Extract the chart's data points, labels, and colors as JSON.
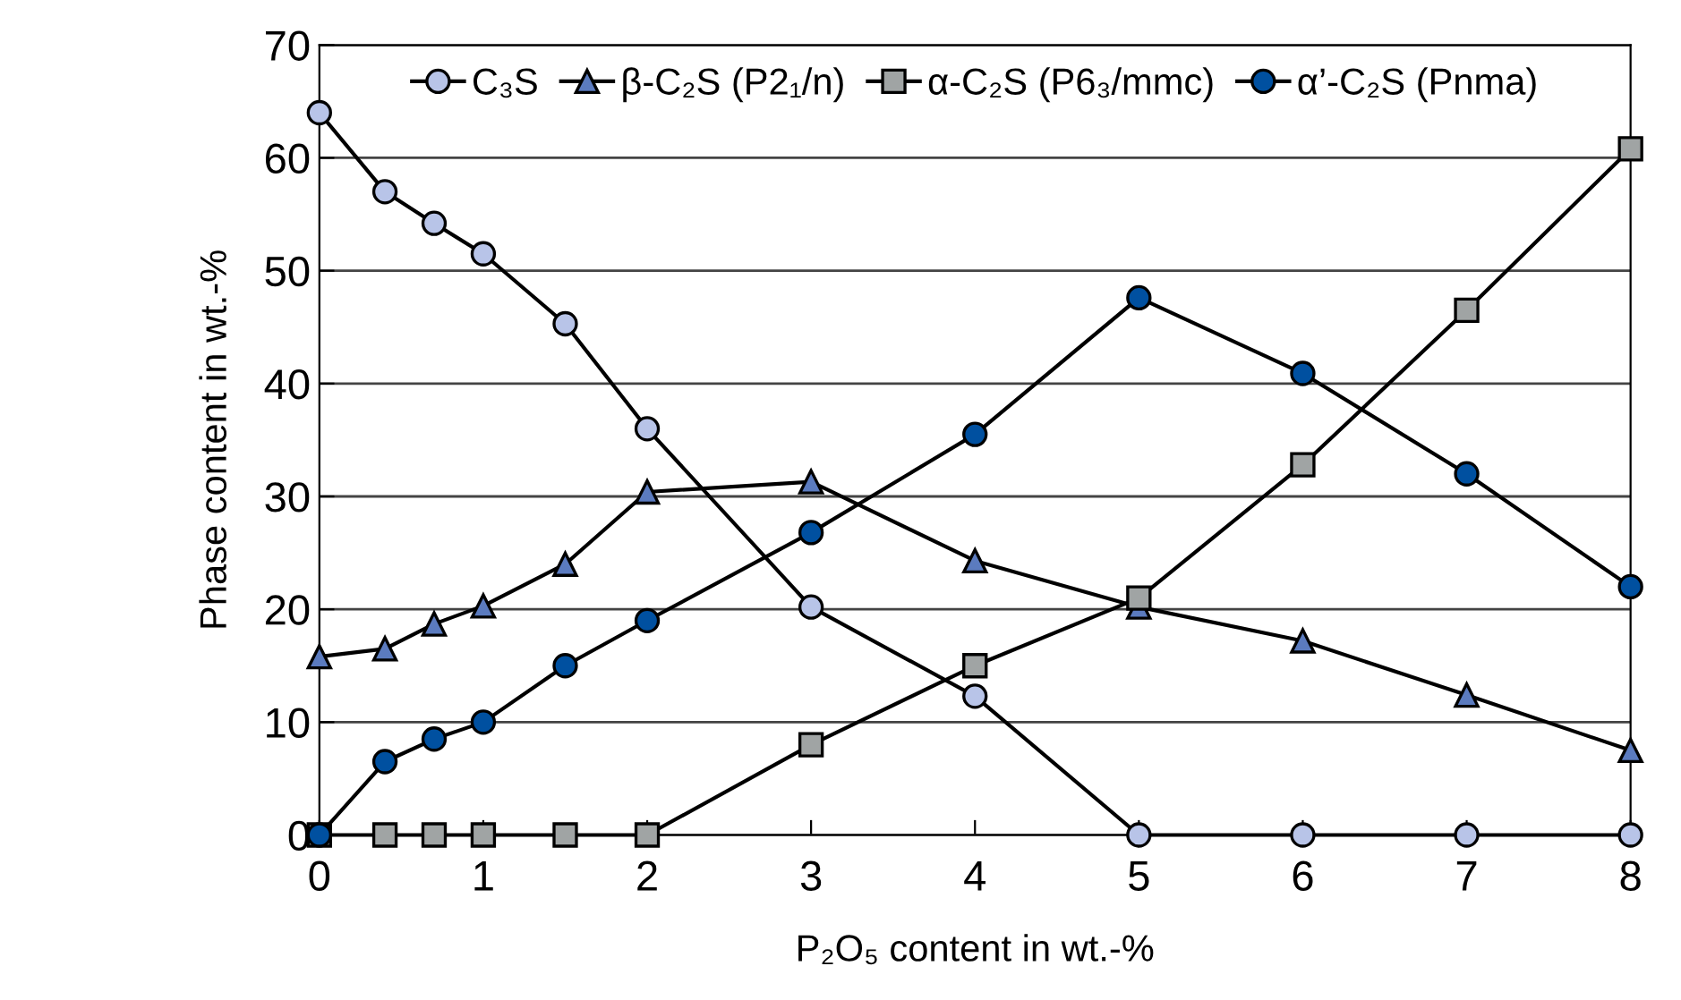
{
  "chart_data": {
    "type": "line",
    "xlabel": "P₂O₅ content in wt.-%",
    "ylabel": "Phase content in wt.-%",
    "x": [
      0,
      0.4,
      0.7,
      1,
      1.5,
      2,
      3,
      4,
      5,
      6,
      7,
      8
    ],
    "series": [
      {
        "name": "C₃S",
        "color": "#b8c4e8",
        "marker": "circle",
        "values": [
          64,
          57,
          54.2,
          51.5,
          45.3,
          36,
          20.2,
          12.3,
          0,
          0,
          0,
          0
        ]
      },
      {
        "name": "β-C₂S (P2₁/n)",
        "color": "#5b7bbf",
        "marker": "triangle",
        "values": [
          15.8,
          16.5,
          18.7,
          20.3,
          24,
          30.4,
          31.3,
          24.3,
          20.2,
          17.2,
          12.4,
          7.5
        ]
      },
      {
        "name": "α-C₂S (P6₃/mmc)",
        "color": "#a0a4a4",
        "marker": "square",
        "values": [
          0,
          0,
          0,
          0,
          0,
          0,
          8,
          15,
          21,
          32.8,
          46.5,
          60.8
        ]
      },
      {
        "name": "α’-C₂S (Pnma)",
        "color": "#0050a0",
        "marker": "circle",
        "values": [
          0,
          6.5,
          8.5,
          10,
          15,
          19,
          26.8,
          35.5,
          47.6,
          40.9,
          32,
          22
        ]
      }
    ],
    "xlim": [
      0,
      8
    ],
    "xticks": [
      0,
      1,
      2,
      3,
      4,
      5,
      6,
      7,
      8
    ],
    "ylim": [
      0,
      70
    ],
    "yticks": [
      0,
      10,
      20,
      30,
      40,
      50,
      60,
      70
    ],
    "grid": "y",
    "legend": "top",
    "line_style": "solid"
  }
}
